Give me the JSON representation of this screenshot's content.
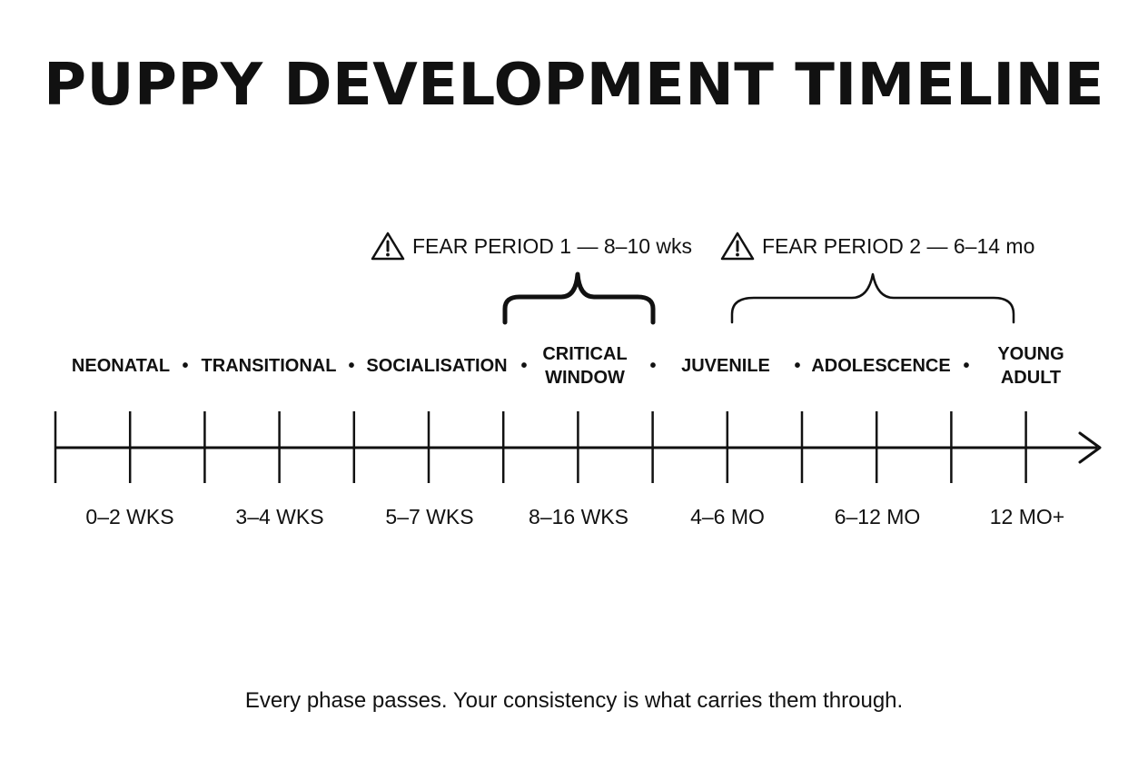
{
  "title": "PUPPY DEVELOPMENT TIMELINE",
  "fear_periods": [
    {
      "label": "FEAR PERIOD 1 — 8–10 wks",
      "icon": "warning-icon"
    },
    {
      "label": "FEAR PERIOD 2 — 6–14 mo",
      "icon": "warning-icon"
    }
  ],
  "phases": [
    {
      "label": "NEONATAL"
    },
    {
      "label": "TRANSITIONAL"
    },
    {
      "label": "SOCIALISATION"
    },
    {
      "line1": "CRITICAL",
      "line2": "WINDOW"
    },
    {
      "label": "JUVENILE"
    },
    {
      "label": "ADOLESCENCE"
    },
    {
      "line1": "YOUNG",
      "line2": "ADULT"
    }
  ],
  "separator": "•",
  "ages": [
    "0–2 WKS",
    "3–4 WKS",
    "5–7 WKS",
    "8–16 WKS",
    "4–6 MO",
    "6–12 MO",
    "12 MO+"
  ],
  "footer": "Every phase passes. Your consistency is what carries them through.",
  "colors": {
    "ink": "#111111",
    "background": "#ffffff"
  }
}
